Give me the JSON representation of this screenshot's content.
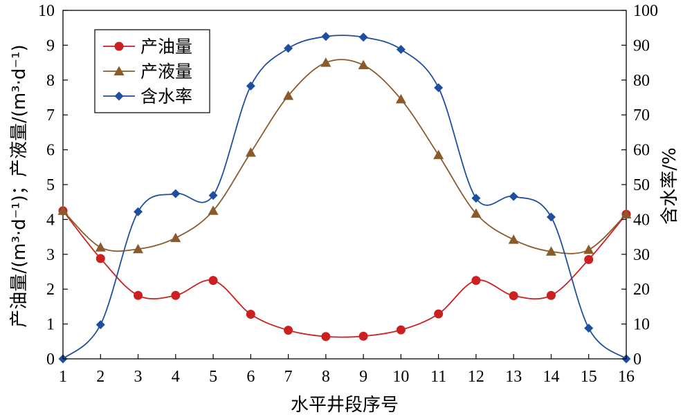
{
  "chart_data": {
    "type": "line",
    "x": [
      1,
      2,
      3,
      4,
      5,
      6,
      7,
      8,
      9,
      10,
      11,
      12,
      13,
      14,
      15,
      16
    ],
    "xlabel": "水平井段序号",
    "ylabel_left": "产油量/(m³·d⁻¹)；产液量/(m³·d⁻¹)",
    "ylabel_right": "含水率/%",
    "xlim": [
      1,
      16
    ],
    "ylim_left": [
      0,
      10
    ],
    "ylim_right": [
      0,
      100
    ],
    "x_ticks": [
      1,
      2,
      3,
      4,
      5,
      6,
      7,
      8,
      9,
      10,
      11,
      12,
      13,
      14,
      15,
      16
    ],
    "y_ticks_left": [
      0,
      1,
      2,
      3,
      4,
      5,
      6,
      7,
      8,
      9,
      10
    ],
    "y_ticks_right": [
      0,
      10,
      20,
      30,
      40,
      50,
      60,
      70,
      80,
      90,
      100
    ],
    "grid": false,
    "legend_position": "top-left",
    "series": [
      {
        "name": "产油量",
        "axis": "left",
        "marker": "circle",
        "color": "#cc1f1f",
        "values": [
          4.25,
          2.88,
          1.82,
          1.82,
          2.25,
          1.28,
          0.82,
          0.64,
          0.65,
          0.83,
          1.29,
          2.25,
          1.81,
          1.82,
          2.85,
          4.15
        ]
      },
      {
        "name": "产液量",
        "axis": "left",
        "marker": "triangle",
        "color": "#8a5a2b",
        "values": [
          4.25,
          3.2,
          3.15,
          3.47,
          4.25,
          5.92,
          7.55,
          8.5,
          8.43,
          7.45,
          5.85,
          4.17,
          3.42,
          3.08,
          3.13,
          4.15
        ]
      },
      {
        "name": "含水率",
        "axis": "right",
        "marker": "diamond",
        "color": "#1f4e9e",
        "values": [
          0,
          9.8,
          42.2,
          47.4,
          46.9,
          78.3,
          89.1,
          92.5,
          92.3,
          88.8,
          77.8,
          46.1,
          46.6,
          40.7,
          8.8,
          0
        ]
      }
    ]
  }
}
